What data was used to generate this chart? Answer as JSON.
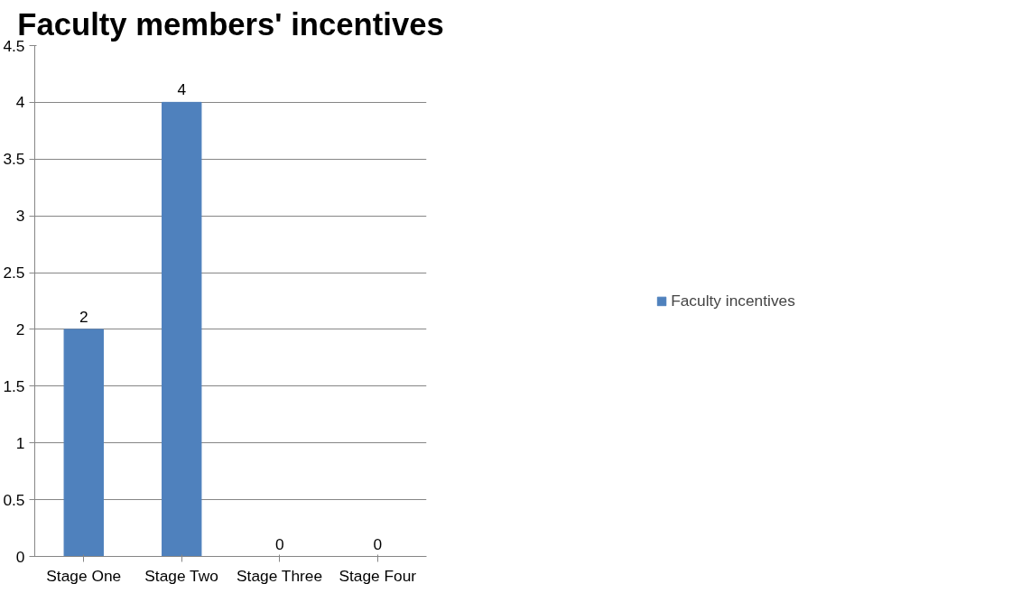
{
  "chart_data": {
    "type": "bar",
    "title": "Faculty members' incentives",
    "categories": [
      "Stage One",
      "Stage Two",
      "Stage Three",
      "Stage Four"
    ],
    "series": [
      {
        "name": "Faculty incentives",
        "color": "#4f81bd",
        "values": [
          2,
          4,
          0,
          0
        ]
      }
    ],
    "ylim": [
      0,
      4.5
    ],
    "yticks": [
      0,
      0.5,
      1,
      1.5,
      2,
      2.5,
      3,
      3.5,
      4,
      4.5
    ],
    "grid": "y",
    "legend": "right",
    "data_labels": true
  }
}
